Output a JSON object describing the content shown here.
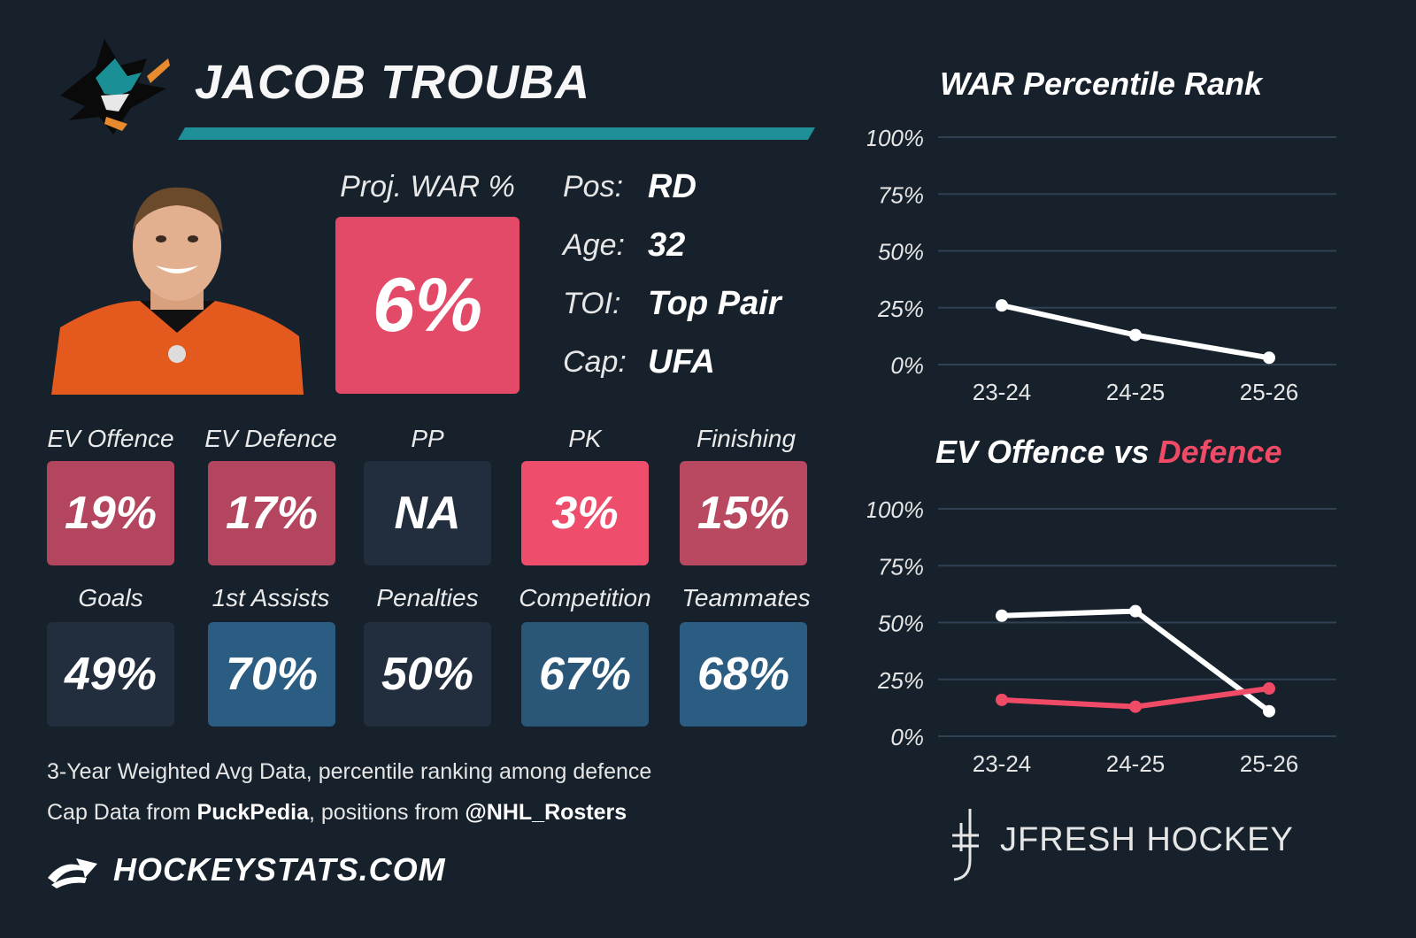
{
  "player": {
    "name": "JACOB TROUBA",
    "proj_label": "Proj. WAR %",
    "proj_value": "6%",
    "info": [
      {
        "label": "Pos:",
        "value": "RD"
      },
      {
        "label": "Age:",
        "value": "32"
      },
      {
        "label": "TOI:",
        "value": "Top Pair"
      },
      {
        "label": "Cap:",
        "value": "UFA"
      }
    ]
  },
  "tiles": [
    {
      "label": "EV Offence",
      "value": "19%",
      "color": "#b4455f"
    },
    {
      "label": "EV Defence",
      "value": "17%",
      "color": "#b4455f"
    },
    {
      "label": "PP",
      "value": "NA",
      "color": "#222e3d"
    },
    {
      "label": "PK",
      "value": "3%",
      "color": "#ee4e6c"
    },
    {
      "label": "Finishing",
      "value": "15%",
      "color": "#b94861"
    },
    {
      "label": "Goals",
      "value": "49%",
      "color": "#222e3d"
    },
    {
      "label": "1st Assists",
      "value": "70%",
      "color": "#2b5c82"
    },
    {
      "label": "Penalties",
      "value": "50%",
      "color": "#222e3d"
    },
    {
      "label": "Competition",
      "value": "67%",
      "color": "#2a5778"
    },
    {
      "label": "Teammates",
      "value": "68%",
      "color": "#2b5c82"
    }
  ],
  "footer": {
    "line1": "3-Year Weighted Avg Data, percentile ranking among defence",
    "line2_a": "Cap Data from ",
    "line2_b": "PuckPedia",
    "line2_c": ", positions from ",
    "line2_d": "@NHL_Rosters",
    "brand": "HOCKEYSTATS.COM",
    "credit": "JFRESH HOCKEY"
  },
  "colors": {
    "accent": "#1f8f97",
    "defence": "#ef4a66",
    "offence": "#ffffff",
    "bg": "#17212b"
  },
  "chart_data": [
    {
      "type": "line",
      "title": "WAR Percentile Rank",
      "categories": [
        "23-24",
        "24-25",
        "25-26"
      ],
      "y_ticks": [
        "100%",
        "75%",
        "50%",
        "25%",
        "0%"
      ],
      "ylim": [
        0,
        100
      ],
      "series": [
        {
          "values": [
            26,
            13,
            3
          ],
          "color": "#ffffff"
        }
      ]
    },
    {
      "type": "line",
      "title_a": "EV Offence vs ",
      "title_b": "Defence",
      "categories": [
        "23-24",
        "24-25",
        "25-26"
      ],
      "y_ticks": [
        "100%",
        "75%",
        "50%",
        "25%",
        "0%"
      ],
      "ylim": [
        0,
        100
      ],
      "series": [
        {
          "values": [
            53,
            55,
            11
          ],
          "color": "#ffffff"
        },
        {
          "values": [
            16,
            13,
            21
          ],
          "color": "#ef4a66"
        }
      ]
    }
  ]
}
